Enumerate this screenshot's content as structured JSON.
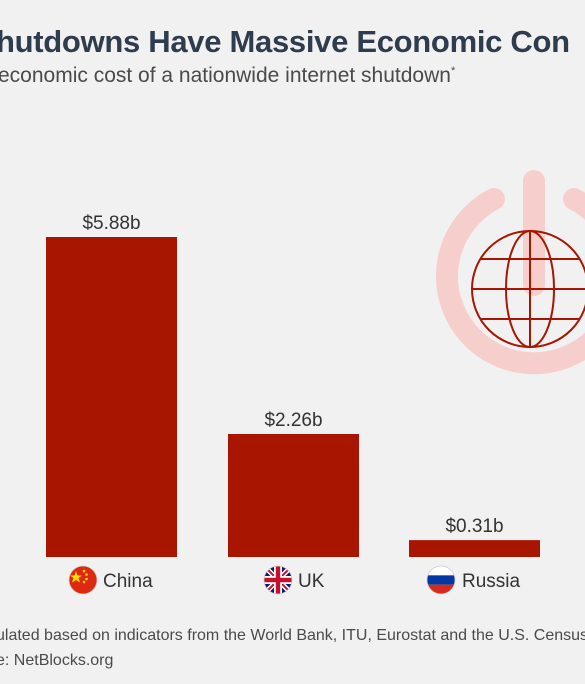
{
  "header": {
    "title": "hutdowns Have Massive Economic Con",
    "subtitle": "economic cost of a nationwide internet shutdown",
    "subtitle_mark": "*"
  },
  "footer": {
    "footnote": "ulated based on indicators from the World Bank, ITU, Eurostat and the U.S. Census",
    "source": "e: NetBlocks.org"
  },
  "colors": {
    "bar": "#a81500",
    "icon_ring": "#f6cfcc",
    "icon_globe": "#a81500"
  },
  "icons": [
    "power-button-icon",
    "globe-icon",
    "flag-china-icon",
    "flag-uk-icon",
    "flag-russia-icon"
  ],
  "chart_data": {
    "type": "bar",
    "title": "",
    "xlabel": "",
    "ylabel": "",
    "categories": [
      "China",
      "UK",
      "Russia"
    ],
    "values": [
      5.88,
      2.26,
      0.31
    ],
    "value_labels": [
      "$5.88b",
      "$2.26b",
      "$0.31b"
    ],
    "unit": "$ billions",
    "ylim": [
      0,
      5.88
    ],
    "grid": false,
    "legend": "none"
  }
}
